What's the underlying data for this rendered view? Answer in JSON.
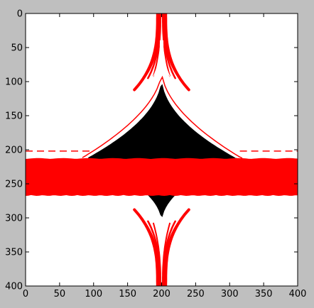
{
  "chart_data": {
    "type": "heatmap",
    "title": "",
    "xlabel": "",
    "ylabel": "",
    "xlim": [
      0,
      400
    ],
    "ylim": [
      400,
      0
    ],
    "y_axis_inverted": true,
    "grid": false,
    "x_ticks": [
      0,
      50,
      100,
      150,
      200,
      250,
      300,
      350,
      400
    ],
    "y_ticks": [
      0,
      50,
      100,
      150,
      200,
      250,
      300,
      350,
      400
    ],
    "colors": {
      "background": "#ffffff",
      "escape_region": "#ff0000",
      "bounded_region": "#000000",
      "figure_face": "#bfbfbf"
    },
    "regions": {
      "red_band": {
        "y_from": 215,
        "y_to": 265,
        "x_from": 0,
        "x_to": 400
      },
      "black_body": {
        "x_from": 92,
        "x_to": 310,
        "y_top": 92,
        "y_bottom": 308,
        "y_widest": 212
      },
      "dashed_line": {
        "y": 202,
        "left_x_from": 0,
        "left_x_to": 95,
        "right_x_from": 315,
        "right_x_to": 400
      },
      "upper_spike": {
        "x_center": 200,
        "y_from": 0,
        "y_to": 92
      },
      "lower_spike": {
        "x_center": 200,
        "y_from": 308,
        "y_to": 400
      }
    }
  }
}
